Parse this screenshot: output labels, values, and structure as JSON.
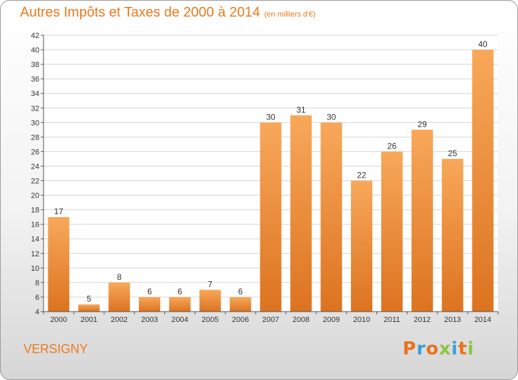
{
  "title": "Autres Impôts et Taxes de 2000 à 2014",
  "subtitle": "(en milliers d'€)",
  "town": "VERSIGNY",
  "logo_text": "Proxiti",
  "colors": {
    "accent": "#ec7a1e",
    "bar_top": "#f8a85a",
    "bar_bottom": "#dc7320",
    "grid": "#d4d4d4",
    "logo_letters": [
      "#e8731d",
      "#3aa0d8",
      "#e8731d",
      "#8bc53f",
      "#3aa0d8",
      "#e8731d",
      "#8bc53f"
    ]
  },
  "chart_data": {
    "type": "bar",
    "title": "Autres Impôts et Taxes de 2000 à 2014",
    "subtitle": "(en milliers d'€)",
    "xlabel": "",
    "ylabel": "",
    "categories": [
      "2000",
      "2001",
      "2002",
      "2003",
      "2004",
      "2005",
      "2006",
      "2007",
      "2008",
      "2009",
      "2010",
      "2011",
      "2012",
      "2013",
      "2014"
    ],
    "values": [
      17,
      5,
      8,
      6,
      6,
      7,
      6,
      30,
      31,
      30,
      22,
      26,
      29,
      25,
      40
    ],
    "ylim": [
      4,
      42
    ],
    "yticks": [
      4,
      6,
      8,
      10,
      12,
      14,
      16,
      18,
      20,
      22,
      24,
      26,
      28,
      30,
      32,
      34,
      36,
      38,
      40,
      42
    ],
    "grid": true,
    "legend": "none"
  }
}
